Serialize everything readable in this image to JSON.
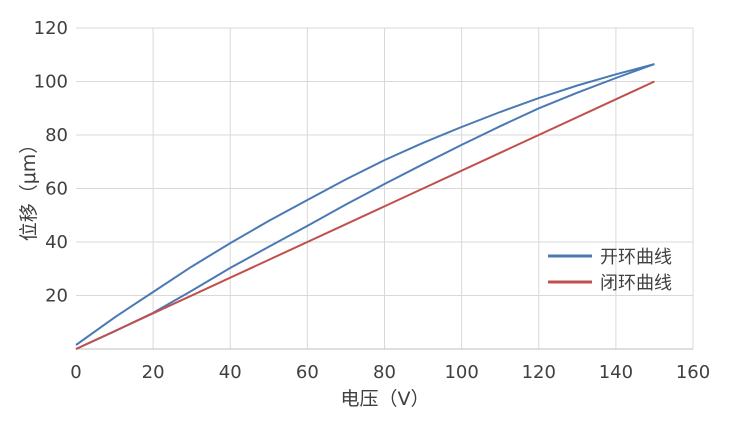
{
  "chart_data": {
    "type": "line",
    "title": "",
    "xlabel": "电压（V）",
    "ylabel": "位移（μm）",
    "xlim": [
      0,
      160
    ],
    "ylim": [
      0,
      120
    ],
    "xticks": [
      0,
      20,
      40,
      60,
      80,
      100,
      120,
      140,
      160
    ],
    "yticks": [
      20,
      40,
      60,
      80,
      100,
      120
    ],
    "grid": true,
    "legend_position": "right",
    "series": [
      {
        "name": "开环曲线",
        "color": "#4a7ab5",
        "segment": "upper-branch",
        "x": [
          0,
          10,
          20,
          30,
          40,
          50,
          60,
          70,
          80,
          90,
          100,
          110,
          120,
          130,
          140,
          150
        ],
        "y": [
          1.5,
          11.8,
          21.3,
          30.8,
          39.6,
          47.9,
          55.7,
          63.4,
          70.6,
          77.1,
          83.0,
          88.6,
          93.8,
          98.5,
          102.7,
          106.5
        ]
      },
      {
        "name": "开环曲线",
        "color": "#4a7ab5",
        "segment": "lower-branch",
        "x": [
          0,
          10,
          20,
          30,
          40,
          50,
          60,
          70,
          80,
          90,
          100,
          110,
          120,
          130,
          140,
          150
        ],
        "y": [
          0,
          6.6,
          13.5,
          21.8,
          30.3,
          38.2,
          46.0,
          54.0,
          61.7,
          69.1,
          76.3,
          83.3,
          90.0,
          95.8,
          101.3,
          106.5
        ]
      },
      {
        "name": "闭环曲线",
        "color": "#c0504d",
        "x": [
          0,
          150
        ],
        "y": [
          0,
          100
        ]
      }
    ],
    "legend": [
      "开环曲线",
      "闭环曲线"
    ]
  }
}
